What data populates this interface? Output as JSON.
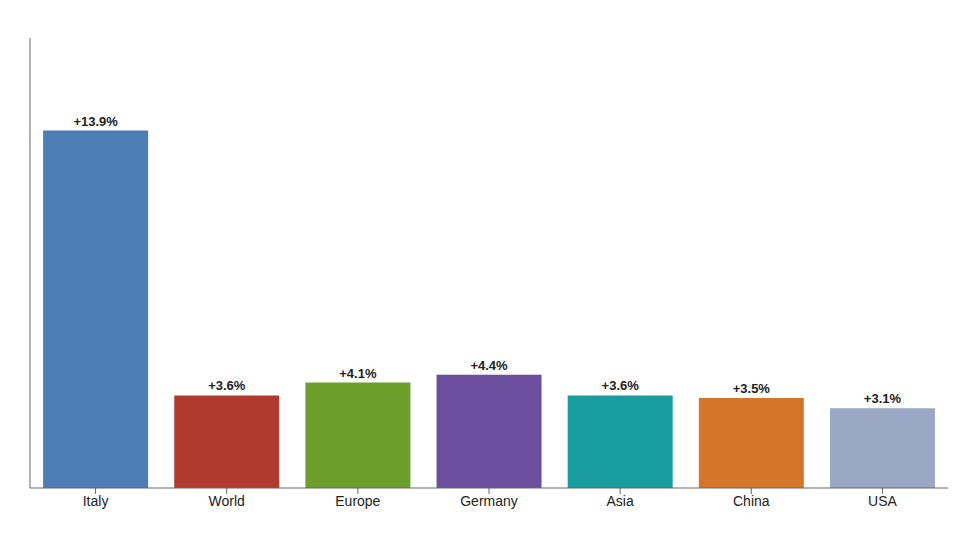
{
  "chart_data": {
    "type": "bar",
    "categories": [
      "Italy",
      "World",
      "Europe",
      "Germany",
      "Asia",
      "China",
      "USA"
    ],
    "values": [
      13.9,
      3.6,
      4.1,
      4.4,
      3.6,
      3.5,
      3.1
    ],
    "value_labels": [
      "+13.9%",
      "+3.6%",
      "+4.1%",
      "+4.4%",
      "+3.6%",
      "+3.5%",
      "+3.1%"
    ],
    "data_labels": true,
    "colors": [
      "#4d7db5",
      "#b03a2e",
      "#6b9e2a",
      "#6b4f9e",
      "#1a9da0",
      "#d4762a",
      "#9ba8c5"
    ],
    "ylim": [
      0,
      17.5
    ],
    "tick_labels": "x",
    "grid": false
  }
}
